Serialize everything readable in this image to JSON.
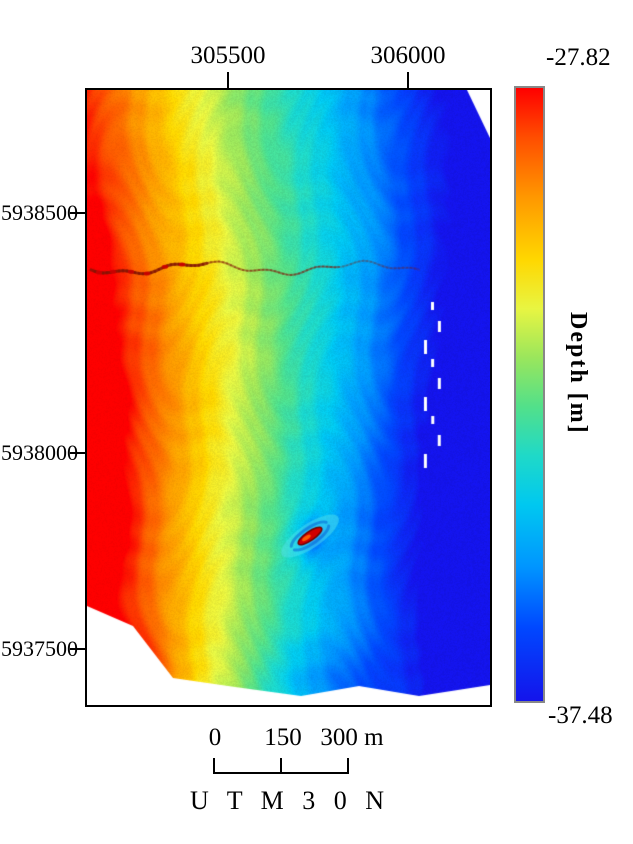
{
  "figure": {
    "axes": {
      "x_ticks": [
        "305500",
        "306000"
      ],
      "y_ticks": [
        "5938500",
        "5938000",
        "5937500"
      ]
    },
    "colorbar": {
      "title": "Depth [m]",
      "top_label": "-27.82",
      "bottom_label": "-37.48",
      "stops": [
        {
          "p": 0.0,
          "c": "#ff0000"
        },
        {
          "p": 0.08,
          "c": "#ff4d00"
        },
        {
          "p": 0.18,
          "c": "#ff9900"
        },
        {
          "p": 0.28,
          "c": "#ffd700"
        },
        {
          "p": 0.36,
          "c": "#e8f542"
        },
        {
          "p": 0.44,
          "c": "#9ae65c"
        },
        {
          "p": 0.52,
          "c": "#52e08a"
        },
        {
          "p": 0.6,
          "c": "#1fd9c8"
        },
        {
          "p": 0.68,
          "c": "#00c8f0"
        },
        {
          "p": 0.78,
          "c": "#0096ff"
        },
        {
          "p": 0.88,
          "c": "#0048ff"
        },
        {
          "p": 1.0,
          "c": "#1414eb"
        }
      ]
    },
    "scalebar": {
      "labels": [
        "0",
        "150",
        "300 m"
      ],
      "caption": "U T M 3 0 N"
    },
    "map": {
      "type": "bathymetry",
      "depth_max_m": -27.82,
      "depth_min_m": -37.48
    }
  }
}
